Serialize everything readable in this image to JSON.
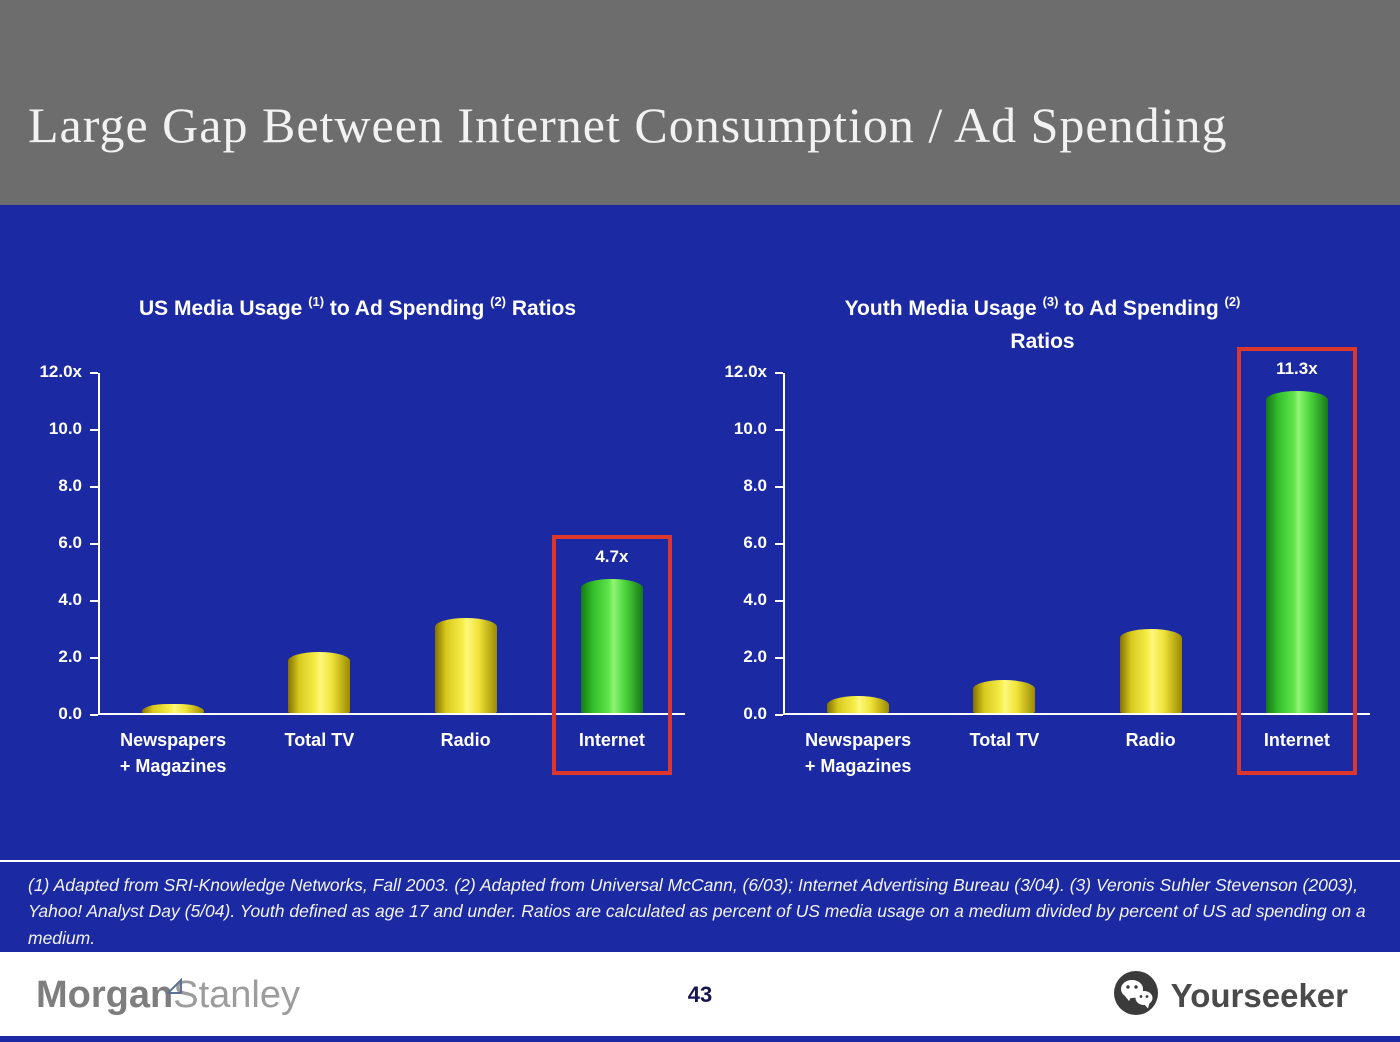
{
  "slide": {
    "title": "Large Gap Between Internet Consumption / Ad Spending",
    "page_number": "43"
  },
  "footnote": "(1) Adapted from SRI-Knowledge Networks, Fall 2003.  (2) Adapted from Universal McCann, (6/03); Internet Advertising Bureau (3/04). (3) Veronis Suhler Stevenson (2003), Yahoo! Analyst Day (5/04).  Youth defined as age 17 and under.  Ratios are calculated as percent of US media usage on a medium divided by percent of US ad spending on a medium.",
  "footer": {
    "brand_morgan": "Morgan",
    "brand_stanley": "Stanley",
    "watermark": "Yourseeker",
    "wechat_icon": "wechat-icon"
  },
  "colors": {
    "header_gray": "#6d6d6d",
    "slide_blue": "#1b29a2",
    "bar_yellow": "#f2e63b",
    "bar_green": "#44d636",
    "highlight_red": "#dc372c",
    "text_white": "#ffffff"
  },
  "chart_data": [
    {
      "type": "bar",
      "title_segments": [
        {
          "t": "US Media Usage "
        },
        {
          "t": "(1)",
          "sup": true
        },
        {
          "t": " to Ad Spending "
        },
        {
          "t": "(2)",
          "sup": true
        },
        {
          "t": " Ratios"
        }
      ],
      "categories": [
        "Newspapers\n+ Magazines",
        "Total TV",
        "Radio",
        "Internet"
      ],
      "values": [
        0.3,
        2.15,
        3.35,
        4.7
      ],
      "bar_styles": [
        "yellow",
        "yellow",
        "yellow",
        "green"
      ],
      "highlight_index": 3,
      "highlight_label": "4.7x",
      "ylim": [
        0,
        12
      ],
      "yticks": [
        "12.0x",
        "10.0",
        "8.0",
        "6.0",
        "4.0",
        "2.0",
        "0.0"
      ],
      "grid": false,
      "legend": false
    },
    {
      "type": "bar",
      "title_segments": [
        {
          "t": "Youth Media Usage "
        },
        {
          "t": "(3)",
          "sup": true
        },
        {
          "t": " to Ad Spending "
        },
        {
          "t": "(2)",
          "sup": true
        },
        {
          "br": true
        },
        {
          "t": "Ratios"
        }
      ],
      "categories": [
        "Newspapers\n+ Magazines",
        "Total TV",
        "Radio",
        "Internet"
      ],
      "values": [
        0.6,
        1.15,
        2.95,
        11.3
      ],
      "bar_styles": [
        "yellow",
        "yellow",
        "yellow",
        "green"
      ],
      "highlight_index": 3,
      "highlight_label": "11.3x",
      "ylim": [
        0,
        12
      ],
      "yticks": [
        "12.0x",
        "10.0",
        "8.0",
        "6.0",
        "4.0",
        "2.0",
        "0.0"
      ],
      "grid": false,
      "legend": false
    }
  ]
}
